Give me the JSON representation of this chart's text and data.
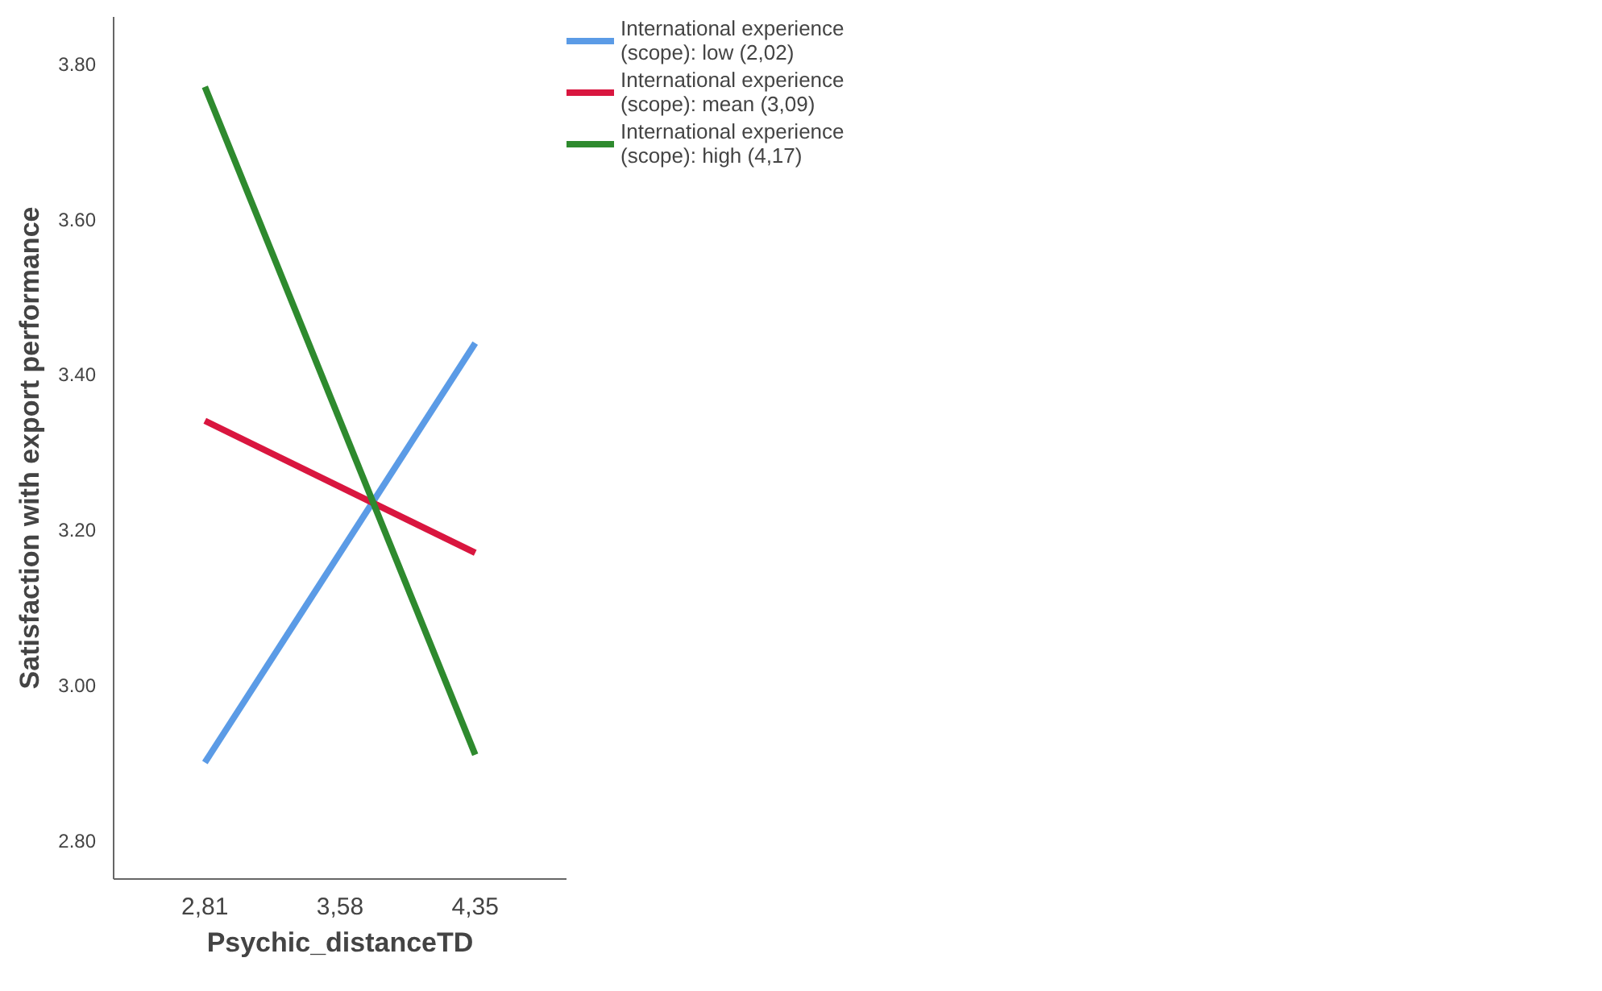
{
  "chart_data": {
    "type": "line",
    "xlabel": "Psychic_distanceTD",
    "ylabel": "Satisfaction with export performance",
    "x": [
      2.81,
      4.35
    ],
    "xlim": [
      2.29,
      4.87
    ],
    "xticks": [
      {
        "value": 2.81,
        "label": "2,81"
      },
      {
        "value": 3.58,
        "label": "3,58"
      },
      {
        "value": 4.35,
        "label": "4,35"
      }
    ],
    "ylim": [
      2.75,
      3.86
    ],
    "yticks": [
      {
        "value": 2.8,
        "label": "2.80"
      },
      {
        "value": 3.0,
        "label": "3.00"
      },
      {
        "value": 3.2,
        "label": "3.20"
      },
      {
        "value": 3.4,
        "label": "3.40"
      },
      {
        "value": 3.6,
        "label": "3.60"
      },
      {
        "value": 3.8,
        "label": "3.80"
      }
    ],
    "series": [
      {
        "name": "International experience (scope): low (2,02)",
        "color": "#5b9be6",
        "values": [
          2.9,
          3.44
        ]
      },
      {
        "name": "International experience (scope): mean (3,09)",
        "color": "#d9163f",
        "values": [
          3.34,
          3.17
        ]
      },
      {
        "name": "International experience (scope): high (4,17)",
        "color": "#2e8a2e",
        "values": [
          3.77,
          2.91
        ]
      }
    ],
    "grid": false,
    "legend": "top right",
    "marker": "none",
    "line_style": "solid"
  }
}
